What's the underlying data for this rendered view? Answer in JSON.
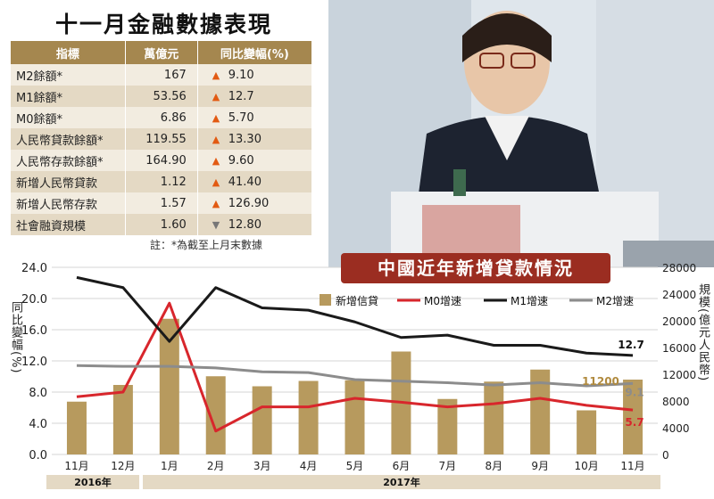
{
  "header": {
    "title": "十一月金融數據表現"
  },
  "table": {
    "headers": [
      "指標",
      "萬億元",
      "同比變幅(%)"
    ],
    "rows": [
      {
        "name": "M2餘額*",
        "value": "167",
        "dir": "up",
        "change": "9.10"
      },
      {
        "name": "M1餘額*",
        "value": "53.56",
        "dir": "up",
        "change": "12.7"
      },
      {
        "name": "M0餘額*",
        "value": "6.86",
        "dir": "up",
        "change": "5.70"
      },
      {
        "name": "人民幣貸款餘額*",
        "value": "119.55",
        "dir": "up",
        "change": "13.30"
      },
      {
        "name": "人民幣存款餘額*",
        "value": "164.90",
        "dir": "up",
        "change": "9.60"
      },
      {
        "name": "新增人民幣貸款",
        "value": "1.12",
        "dir": "up",
        "change": "41.40"
      },
      {
        "name": "新增人民幣存款",
        "value": "1.57",
        "dir": "up",
        "change": "126.90"
      },
      {
        "name": "社會融資規模",
        "value": "1.60",
        "dir": "down",
        "change": "12.80"
      }
    ],
    "note": "註：*為截至上月末數據"
  },
  "chart_data": {
    "type": "bar",
    "title": "中國近年新增貸款情況",
    "categories": [
      "11月",
      "12月",
      "1月",
      "2月",
      "3月",
      "4月",
      "5月",
      "6月",
      "7月",
      "8月",
      "9月",
      "10月",
      "11月"
    ],
    "year_labels": [
      "2016年",
      "2017年"
    ],
    "left_axis": {
      "label": "同比變幅(%)",
      "ticks": [
        "0.0",
        "4.0",
        "8.0",
        "12.0",
        "16.0",
        "20.0",
        "24.0"
      ],
      "ylim": [
        0,
        24
      ]
    },
    "right_axis": {
      "label": "規模(億元人民幣)",
      "ticks": [
        "0",
        "4000",
        "8000",
        "12000",
        "16000",
        "20000",
        "24000",
        "28000"
      ],
      "ylim": [
        0,
        28000
      ]
    },
    "series": [
      {
        "name": "新增信貸",
        "type": "bar",
        "axis": "right",
        "color": "#b79a5e",
        "values": [
          7900,
          10400,
          20300,
          11700,
          10200,
          11000,
          11100,
          15400,
          8300,
          10900,
          12700,
          6600,
          11200
        ]
      },
      {
        "name": "M0增速",
        "type": "line",
        "axis": "left",
        "color": "#d8262c",
        "values": [
          7.4,
          8.0,
          19.4,
          3.0,
          6.1,
          6.1,
          7.2,
          6.7,
          6.1,
          6.5,
          7.2,
          6.3,
          5.7
        ]
      },
      {
        "name": "M1增速",
        "type": "line",
        "axis": "left",
        "color": "#1a1a1a",
        "values": [
          22.7,
          21.4,
          14.5,
          21.4,
          18.8,
          18.5,
          17.0,
          15.0,
          15.3,
          14.0,
          14.0,
          13.0,
          12.7
        ]
      },
      {
        "name": "M2增速",
        "type": "line",
        "axis": "left",
        "color": "#8c8c8c",
        "values": [
          11.4,
          11.3,
          11.3,
          11.1,
          10.6,
          10.5,
          9.6,
          9.4,
          9.2,
          8.9,
          9.2,
          8.8,
          9.1
        ]
      }
    ],
    "annotations": {
      "bar_last": "11200",
      "m1_last": "12.7",
      "m2_last": "9.1",
      "m0_last": "5.7"
    },
    "legend_position": "top"
  }
}
